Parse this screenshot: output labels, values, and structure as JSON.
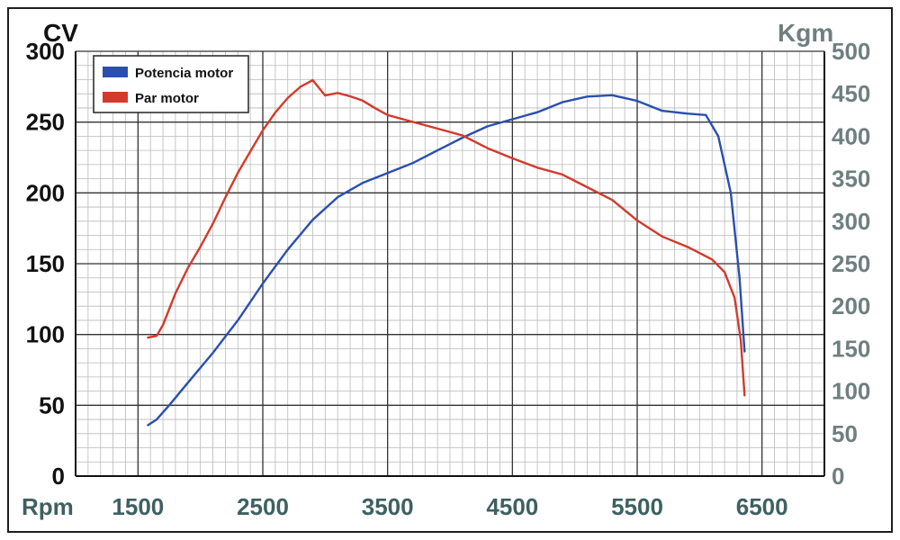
{
  "chart_data": {
    "type": "line",
    "title": "",
    "xlabel": "Rpm",
    "ylabel_left": "CV",
    "ylabel_right": "Kgm",
    "x_ticks": [
      "1500",
      "2500",
      "3500",
      "4500",
      "5500",
      "6500"
    ],
    "xlim": [
      1000,
      7000
    ],
    "y_left_ticks": [
      "0",
      "50",
      "100",
      "150",
      "200",
      "250",
      "300"
    ],
    "ylim_left": [
      0,
      300
    ],
    "y_right_ticks": [
      "0",
      "50",
      "100",
      "150",
      "200",
      "250",
      "300",
      "350",
      "400",
      "450",
      "500"
    ],
    "ylim_right": [
      0,
      500
    ],
    "grid": true,
    "legend_position": "top-left",
    "series": [
      {
        "name": "Potencia motor",
        "axis": "left",
        "color": "#2a4fb0",
        "x": [
          1580,
          1650,
          1750,
          1900,
          2100,
          2300,
          2500,
          2700,
          2900,
          3100,
          3300,
          3500,
          3700,
          3900,
          4100,
          4300,
          4500,
          4700,
          4900,
          5100,
          5300,
          5500,
          5700,
          5900,
          6050,
          6150,
          6250,
          6320,
          6360
        ],
        "y": [
          36,
          40,
          50,
          66,
          87,
          110,
          136,
          160,
          181,
          197,
          207,
          214,
          221,
          230,
          239,
          247,
          252,
          257,
          264,
          268,
          269,
          265,
          258,
          256,
          255,
          240,
          200,
          140,
          88
        ]
      },
      {
        "name": "Par motor",
        "axis": "right",
        "color": "#d23a2c",
        "x": [
          1580,
          1650,
          1700,
          1800,
          1900,
          2000,
          2100,
          2200,
          2300,
          2400,
          2500,
          2600,
          2700,
          2800,
          2900,
          3000,
          3100,
          3200,
          3300,
          3400,
          3500,
          3700,
          3900,
          4100,
          4300,
          4500,
          4700,
          4900,
          5100,
          5300,
          5500,
          5700,
          5900,
          6100,
          6200,
          6280,
          6330,
          6360
        ],
        "y": [
          163,
          165,
          178,
          215,
          245,
          270,
          297,
          328,
          357,
          382,
          407,
          428,
          445,
          458,
          466,
          448,
          451,
          447,
          442,
          433,
          425,
          417,
          409,
          401,
          386,
          374,
          363,
          355,
          340,
          325,
          301,
          282,
          270,
          255,
          240,
          210,
          160,
          95
        ]
      }
    ]
  }
}
